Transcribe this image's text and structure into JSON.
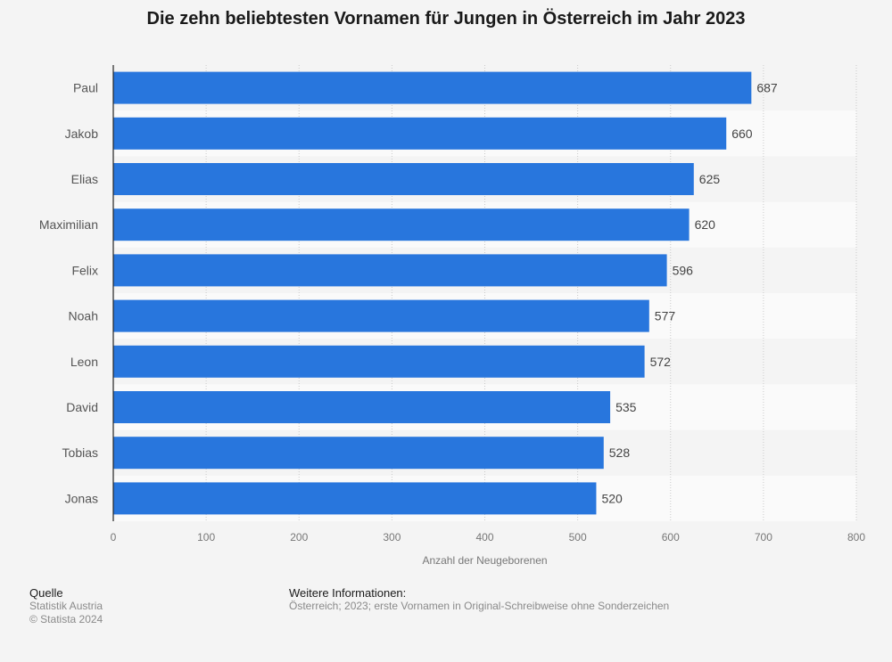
{
  "chart_data": {
    "type": "bar",
    "orientation": "horizontal",
    "title": "Die zehn beliebtesten Vornamen für Jungen in Österreich im Jahr 2023",
    "categories": [
      "Paul",
      "Jakob",
      "Elias",
      "Maximilian",
      "Felix",
      "Noah",
      "Leon",
      "David",
      "Tobias",
      "Jonas"
    ],
    "values": [
      687,
      660,
      625,
      620,
      596,
      577,
      572,
      535,
      528,
      520
    ],
    "xlabel": "Anzahl der Neugeborenen",
    "ylabel": "",
    "xlim": [
      0,
      800
    ],
    "xticks": [
      0,
      100,
      200,
      300,
      400,
      500,
      600,
      700,
      800
    ],
    "grid": true,
    "bar_color": "#2876dd"
  },
  "footer": {
    "source_heading": "Quelle",
    "source_lines": [
      "Statistik Austria",
      "© Statista 2024"
    ],
    "info_heading": "Weitere Informationen:",
    "info_text": "Österreich; 2023; erste Vornamen in Original-Schreibweise ohne Sonderzeichen"
  }
}
